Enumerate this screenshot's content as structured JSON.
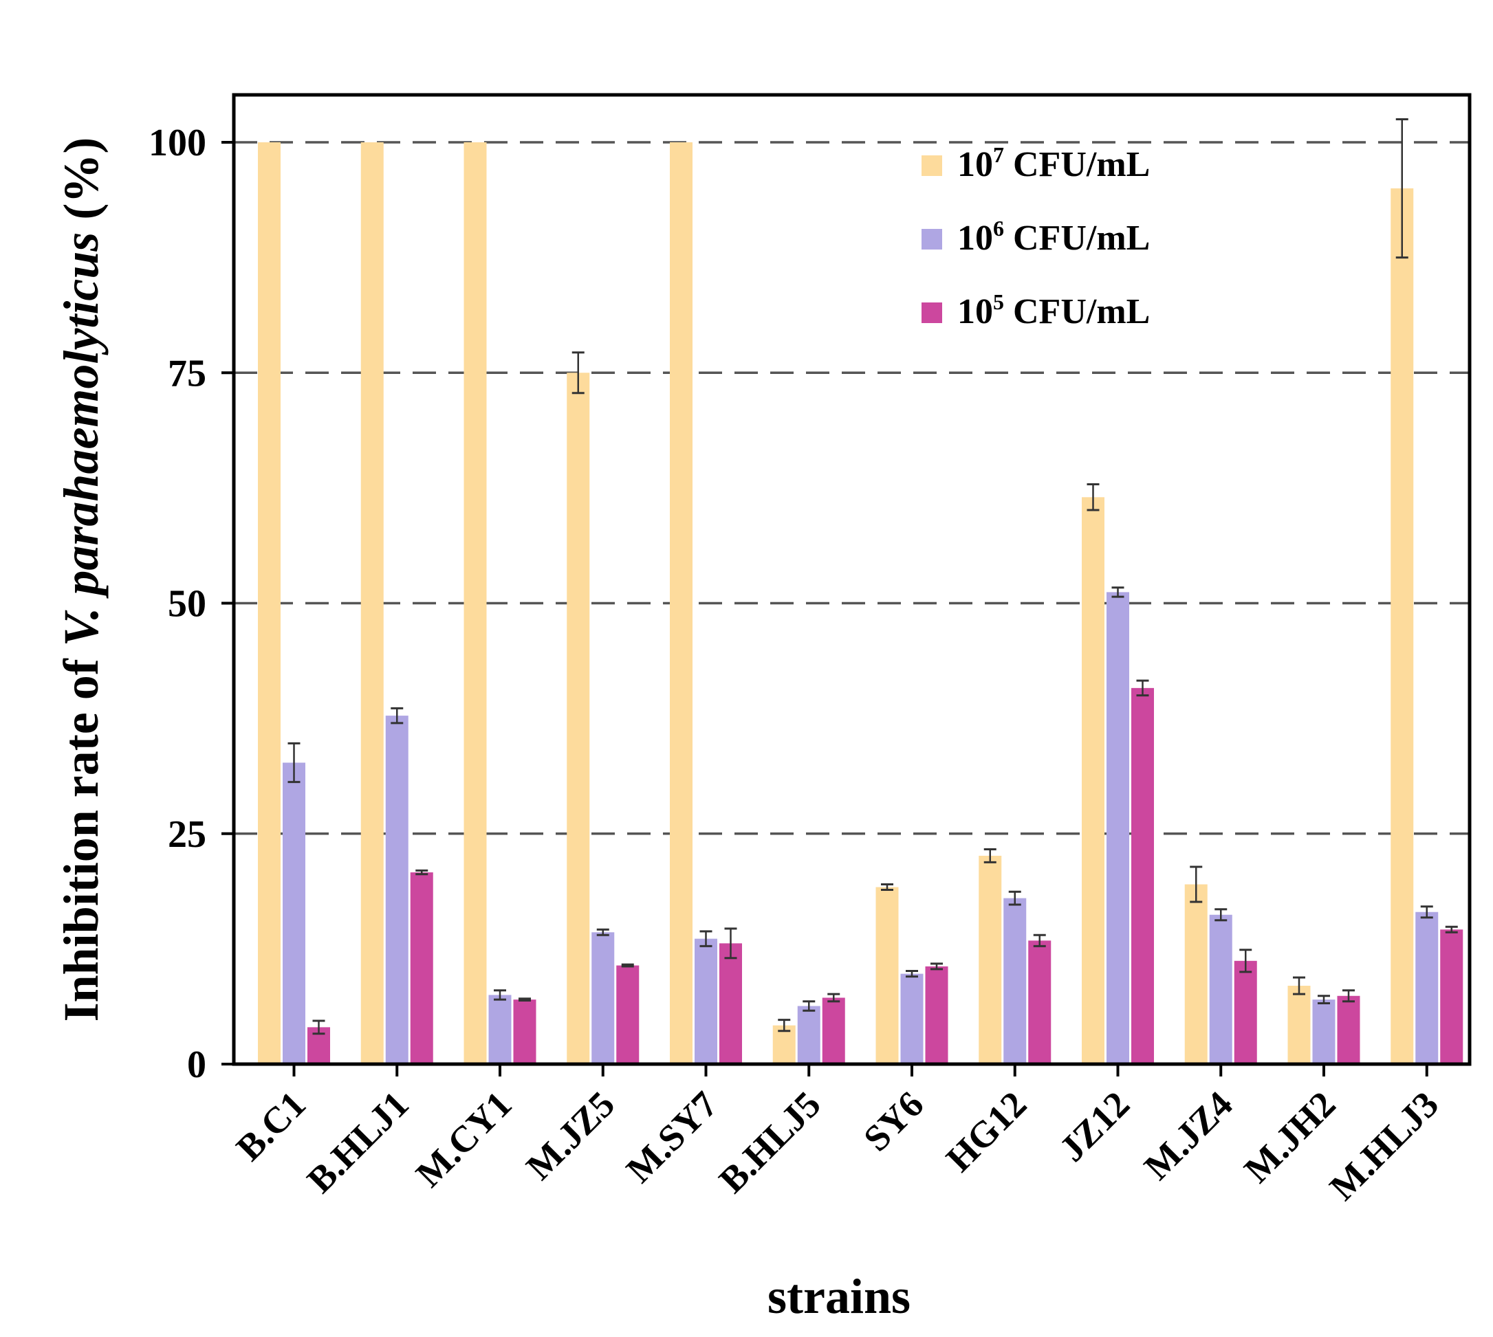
{
  "chart_data": {
    "type": "bar",
    "title": "",
    "xlabel": "strains",
    "ylabel": {
      "prefix": "Inhibition rate of ",
      "italic": "V. parahaemolyticus",
      "suffix": " (%)"
    },
    "ylim": [
      0,
      100
    ],
    "yticks": [
      0,
      25,
      50,
      75,
      100
    ],
    "grid": "dashed horizontal",
    "legend_position": "top-right",
    "categories": [
      "B.C1",
      "B.HLJ1",
      "M.CY1",
      "M.JZ5",
      "M.SY7",
      "B.HLJ5",
      "SY6",
      "HG12",
      "JZ12",
      "M.JZ4",
      "M.JH2",
      "M.HLJ3"
    ],
    "series": [
      {
        "name": "10^7 CFU/mL",
        "legend": {
          "base": "10",
          "sup": "7",
          "unit": " CFU/mL"
        },
        "color": "#FDDB9C",
        "values": [
          100,
          100,
          100,
          75,
          100,
          4.2,
          19.2,
          22.6,
          61.5,
          19.5,
          8.5,
          95
        ],
        "errors": [
          0,
          0,
          0,
          2.2,
          0,
          0.6,
          0.3,
          0.7,
          1.4,
          1.9,
          0.9,
          7.5
        ]
      },
      {
        "name": "10^6 CFU/mL",
        "legend": {
          "base": "10",
          "sup": "6",
          "unit": " CFU/mL"
        },
        "color": "#AFA6E3",
        "values": [
          32.7,
          37.8,
          7.5,
          14.3,
          13.6,
          6.3,
          9.8,
          18,
          51.2,
          16.2,
          7,
          16.5
        ],
        "errors": [
          2.1,
          0.8,
          0.5,
          0.3,
          0.8,
          0.5,
          0.3,
          0.7,
          0.5,
          0.6,
          0.4,
          0.6
        ]
      },
      {
        "name": "10^5 CFU/mL",
        "legend": {
          "base": "10",
          "sup": "5",
          "unit": " CFU/mL"
        },
        "color": "#CC479E",
        "values": [
          4,
          20.8,
          7,
          10.7,
          13.1,
          7.2,
          10.6,
          13.4,
          40.8,
          11.2,
          7.4,
          14.6
        ],
        "errors": [
          0.7,
          0.2,
          0.1,
          0.1,
          1.6,
          0.4,
          0.3,
          0.6,
          0.8,
          1.2,
          0.6,
          0.3
        ]
      }
    ]
  }
}
